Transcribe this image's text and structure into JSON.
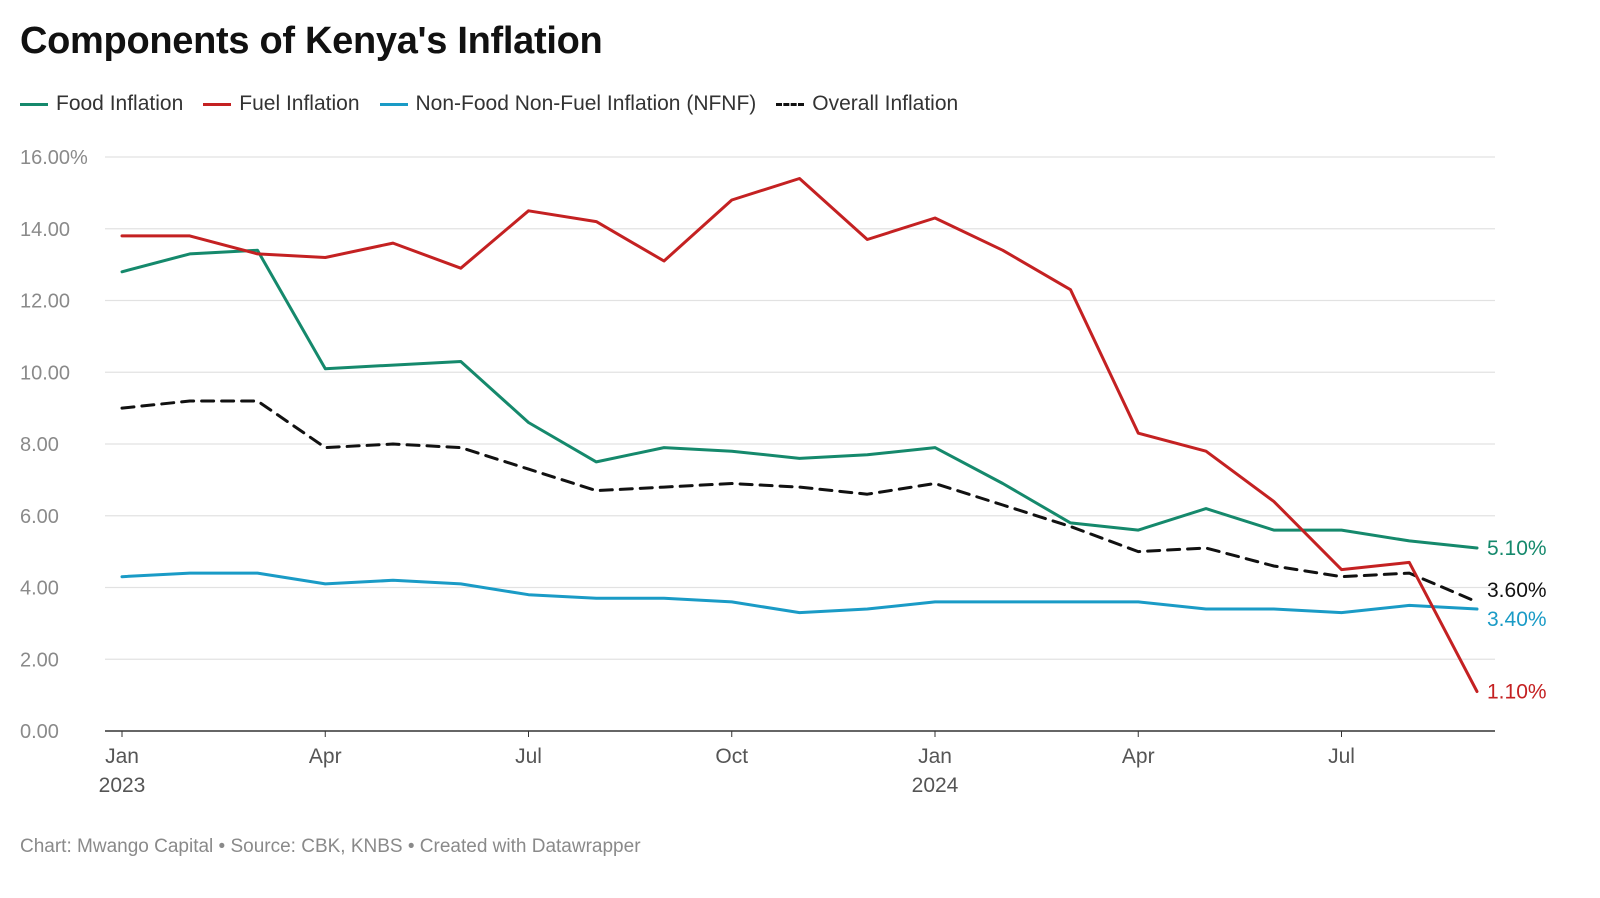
{
  "title": "Components of Kenya's Inflation",
  "footer": "Chart: Mwango Capital • Source: CBK, KNBS • Created with Datawrapper",
  "chart_data": {
    "type": "line",
    "title": "Components of Kenya's Inflation",
    "xlabel": "",
    "ylabel": "",
    "ylim": [
      0,
      16
    ],
    "y_ticks": [
      0,
      2,
      4,
      6,
      8,
      10,
      12,
      14,
      16
    ],
    "y_tick_labels": [
      "0.00",
      "2.00",
      "4.00",
      "6.00",
      "8.00",
      "10.00",
      "12.00",
      "14.00",
      "16.00%"
    ],
    "grid": true,
    "legend_position": "top-left",
    "x": [
      "2023-01",
      "2023-02",
      "2023-03",
      "2023-04",
      "2023-05",
      "2023-06",
      "2023-07",
      "2023-08",
      "2023-09",
      "2023-10",
      "2023-11",
      "2023-12",
      "2024-01",
      "2024-02",
      "2024-03",
      "2024-04",
      "2024-05",
      "2024-06",
      "2024-07",
      "2024-08",
      "2024-09"
    ],
    "x_ticks": [
      {
        "index": 0,
        "label": "Jan",
        "sublabel": "2023"
      },
      {
        "index": 3,
        "label": "Apr",
        "sublabel": ""
      },
      {
        "index": 6,
        "label": "Jul",
        "sublabel": ""
      },
      {
        "index": 9,
        "label": "Oct",
        "sublabel": ""
      },
      {
        "index": 12,
        "label": "Jan",
        "sublabel": "2024"
      },
      {
        "index": 15,
        "label": "Apr",
        "sublabel": ""
      },
      {
        "index": 18,
        "label": "Jul",
        "sublabel": ""
      }
    ],
    "series": [
      {
        "name": "Food Inflation",
        "color": "#15896c",
        "dash": false,
        "end_label": "5.10%",
        "values": [
          12.8,
          13.3,
          13.4,
          10.1,
          10.2,
          10.3,
          8.6,
          7.5,
          7.9,
          7.8,
          7.6,
          7.7,
          7.9,
          6.9,
          5.8,
          5.6,
          6.2,
          5.6,
          5.6,
          5.3,
          5.1
        ]
      },
      {
        "name": "Fuel Inflation",
        "color": "#c42122",
        "dash": false,
        "end_label": "1.10%",
        "values": [
          13.8,
          13.8,
          13.3,
          13.2,
          13.6,
          12.9,
          14.5,
          14.2,
          13.1,
          14.8,
          15.4,
          13.7,
          14.3,
          13.4,
          12.3,
          8.3,
          7.8,
          6.4,
          4.5,
          4.7,
          1.1
        ]
      },
      {
        "name": "Non-Food Non-Fuel Inflation (NFNF)",
        "color": "#1a9bc6",
        "dash": false,
        "end_label": "3.40%",
        "values": [
          4.3,
          4.4,
          4.4,
          4.1,
          4.2,
          4.1,
          3.8,
          3.7,
          3.7,
          3.6,
          3.3,
          3.4,
          3.6,
          3.6,
          3.6,
          3.6,
          3.4,
          3.4,
          3.3,
          3.5,
          3.4
        ]
      },
      {
        "name": "Overall Inflation",
        "color": "#111111",
        "dash": true,
        "end_label": "3.60%",
        "values": [
          9.0,
          9.2,
          9.2,
          7.9,
          8.0,
          7.9,
          7.3,
          6.7,
          6.8,
          6.9,
          6.8,
          6.6,
          6.9,
          6.3,
          5.7,
          5.0,
          5.1,
          4.6,
          4.3,
          4.4,
          3.6
        ]
      }
    ]
  }
}
